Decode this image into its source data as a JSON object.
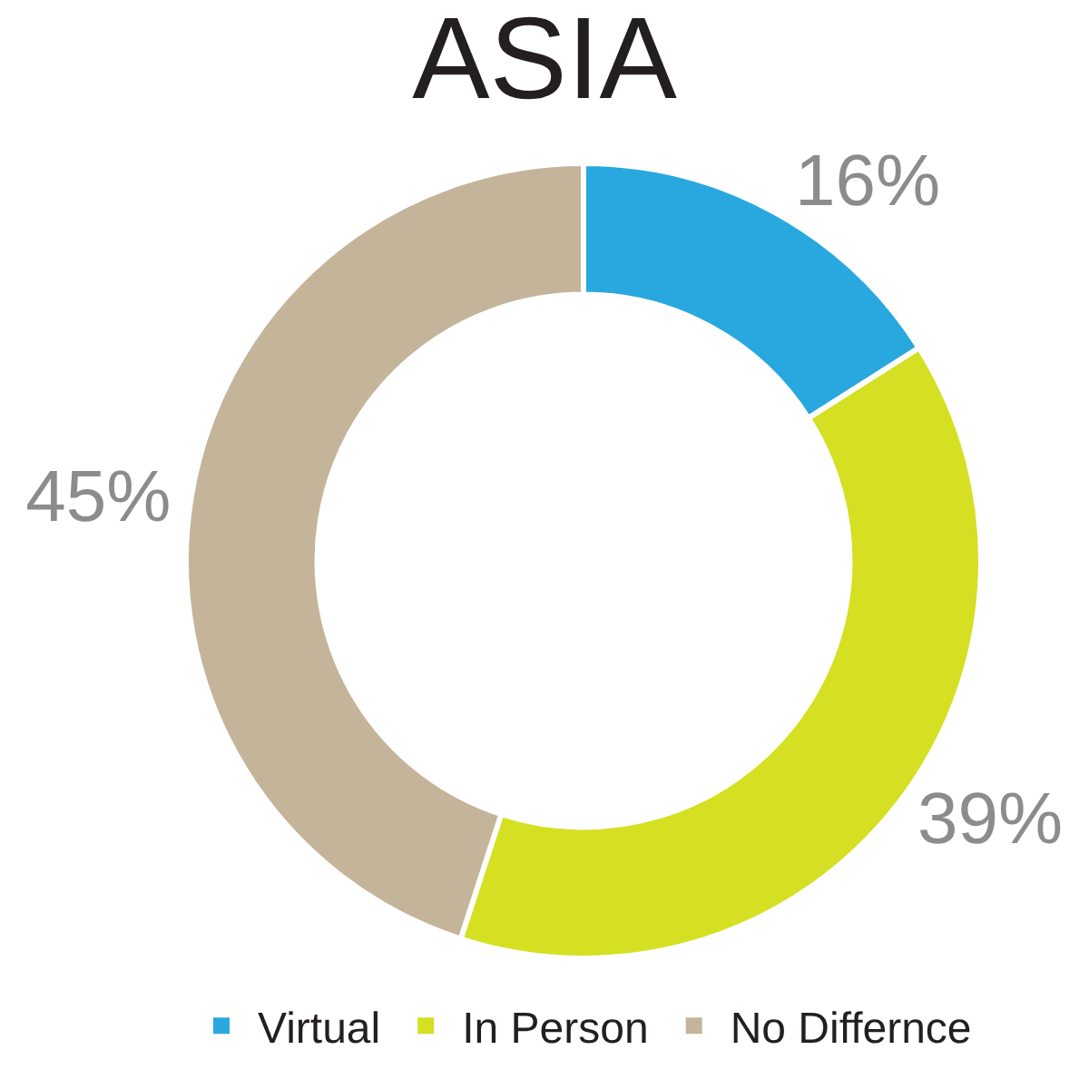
{
  "chart_data": {
    "type": "donut",
    "title": "ASIA",
    "categories": [
      "Virtual",
      "In Person",
      "No Differnce"
    ],
    "values": [
      16,
      39,
      45
    ],
    "colors": [
      "#29a8e0",
      "#d4e021",
      "#c4b49a"
    ],
    "value_labels": [
      "16%",
      "39%",
      "45%"
    ],
    "legend": "bottom"
  }
}
